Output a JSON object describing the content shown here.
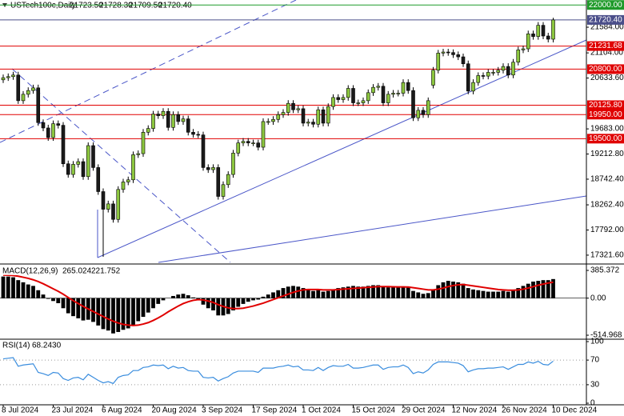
{
  "chart_data": [
    {
      "type": "candlestick",
      "title": "USTech100c,Daily",
      "header": [
        {
          "value": 21723.5,
          "label": "21723.50"
        },
        {
          "value": 21728.3,
          "label": "21728.30"
        },
        {
          "value": 21709.5,
          "label": "21709.50"
        },
        {
          "value": 21720.4,
          "label": "21720.40"
        }
      ],
      "categories": [
        "8 Jul 2024",
        null,
        null,
        null,
        null,
        null,
        null,
        null,
        null,
        null,
        "23 Jul 2024",
        null,
        null,
        null,
        null,
        null,
        null,
        null,
        null,
        null,
        "6 Aug 2024",
        null,
        null,
        null,
        null,
        null,
        null,
        null,
        null,
        null,
        "20 Aug 2024",
        null,
        null,
        null,
        null,
        null,
        null,
        null,
        null,
        null,
        "3 Sep 2024",
        null,
        null,
        null,
        null,
        null,
        null,
        null,
        null,
        null,
        "17 Sep 2024",
        null,
        null,
        null,
        null,
        null,
        null,
        null,
        null,
        null,
        "1 Oct 2024",
        null,
        null,
        null,
        null,
        null,
        null,
        null,
        null,
        null,
        "15 Oct 2024",
        null,
        null,
        null,
        null,
        null,
        null,
        null,
        null,
        null,
        "29 Oct 2024",
        null,
        null,
        null,
        null,
        null,
        null,
        null,
        null,
        null,
        "12 Nov 2024",
        null,
        null,
        null,
        null,
        null,
        null,
        null,
        null,
        null,
        "26 Nov 2024",
        null,
        null,
        null,
        null,
        null,
        null,
        null,
        null,
        null,
        "10 Dec 2024"
      ],
      "open": [
        20600,
        20640,
        20660,
        20690,
        20210,
        20330,
        20400,
        20450,
        19800,
        19700,
        19520,
        19780,
        19750,
        19030,
        18830,
        19020,
        19070,
        18790,
        19370,
        18960,
        18510,
        18180,
        18280,
        17990,
        18550,
        18690,
        18730,
        19200,
        19220,
        19620,
        19690,
        19960,
        19930,
        20010,
        19710,
        19950,
        19820,
        19870,
        19620,
        19580,
        19570,
        18960,
        18920,
        18960,
        18420,
        18640,
        18830,
        19230,
        19420,
        19450,
        19420,
        19420,
        19340,
        19820,
        19820,
        19860,
        19950,
        19990,
        20160,
        20040,
        20060,
        19790,
        19810,
        19770,
        20040,
        19790,
        20100,
        20270,
        20230,
        20270,
        20440,
        20170,
        20170,
        20210,
        20360,
        20460,
        20480,
        20170,
        20330,
        20350,
        20350,
        20550,
        20400,
        19890,
        20030,
        19950,
        20500,
        20780,
        21100,
        21120,
        21110,
        21070,
        21030,
        20900,
        20390,
        20550,
        20680,
        20670,
        20740,
        20740,
        20780,
        20850,
        20690,
        20930,
        21160,
        21180,
        21460,
        21410,
        21620,
        21420,
        21360
      ],
      "high": [
        20700,
        20720,
        20750,
        20750,
        20390,
        20460,
        20510,
        20510,
        19860,
        19760,
        19840,
        19840,
        19810,
        19090,
        19080,
        19130,
        19130,
        19430,
        19430,
        19020,
        18570,
        18340,
        18340,
        18610,
        18750,
        18790,
        19260,
        19280,
        19680,
        19750,
        20020,
        20020,
        20070,
        20070,
        20010,
        20010,
        19930,
        19930,
        19680,
        19640,
        19630,
        19020,
        19020,
        19020,
        18700,
        18890,
        19290,
        19480,
        19510,
        19510,
        19480,
        19480,
        19880,
        19880,
        19920,
        20010,
        20050,
        20220,
        20220,
        20120,
        20120,
        19870,
        19870,
        20100,
        20100,
        20160,
        20330,
        20330,
        20330,
        20500,
        20500,
        20230,
        20270,
        20420,
        20520,
        20540,
        20540,
        20390,
        20410,
        20410,
        20610,
        20610,
        20460,
        20090,
        20090,
        20270,
        20840,
        21160,
        21180,
        21180,
        21170,
        21130,
        21090,
        20960,
        20610,
        20740,
        20740,
        20800,
        20800,
        20840,
        20910,
        20910,
        20990,
        21220,
        21240,
        21520,
        21520,
        21680,
        21680,
        21480,
        21760
      ],
      "low": [
        20540,
        20580,
        20600,
        20150,
        20150,
        20270,
        20340,
        19740,
        19640,
        19460,
        19460,
        19690,
        18970,
        18770,
        18770,
        18960,
        18730,
        18730,
        18900,
        18450,
        17290,
        18120,
        17930,
        17930,
        18490,
        18630,
        18670,
        19140,
        19160,
        19560,
        19630,
        19870,
        19870,
        19650,
        19650,
        19760,
        19760,
        19560,
        19520,
        19510,
        18900,
        18860,
        18860,
        18360,
        18360,
        18580,
        18770,
        19170,
        19360,
        19360,
        19360,
        19280,
        19280,
        19760,
        19760,
        19800,
        19890,
        19930,
        19980,
        19980,
        19730,
        19730,
        19710,
        19710,
        19730,
        19730,
        20040,
        20170,
        20170,
        20210,
        20110,
        20110,
        20110,
        20150,
        20300,
        20400,
        20110,
        20110,
        20270,
        20290,
        20290,
        20340,
        19830,
        19830,
        19890,
        19890,
        20440,
        20720,
        21040,
        21050,
        21010,
        20970,
        20840,
        20330,
        20330,
        20490,
        20610,
        20610,
        20680,
        20680,
        20720,
        20630,
        20630,
        20870,
        21100,
        21120,
        21350,
        21350,
        21360,
        21300,
        21300
      ],
      "close": [
        20640,
        20660,
        20690,
        20210,
        20330,
        20400,
        20450,
        19800,
        19700,
        19520,
        19780,
        19750,
        19030,
        18830,
        19020,
        19070,
        18790,
        19370,
        18960,
        18510,
        18180,
        18280,
        17990,
        18550,
        18690,
        18730,
        19200,
        19220,
        19620,
        19690,
        19960,
        19930,
        20010,
        19710,
        19950,
        19820,
        19870,
        19620,
        19580,
        19570,
        18960,
        18920,
        18960,
        18420,
        18640,
        18830,
        19230,
        19420,
        19450,
        19420,
        19420,
        19340,
        19820,
        19820,
        19860,
        19950,
        19990,
        20160,
        20040,
        20060,
        19790,
        19810,
        19770,
        20040,
        19790,
        20100,
        20270,
        20230,
        20270,
        20440,
        20170,
        20170,
        20210,
        20360,
        20460,
        20480,
        20170,
        20330,
        20350,
        20350,
        20550,
        20400,
        19890,
        20030,
        19950,
        20210,
        20780,
        21100,
        21120,
        21110,
        21070,
        21030,
        20900,
        20390,
        20550,
        20680,
        20670,
        20740,
        20740,
        20780,
        20850,
        20690,
        20930,
        21160,
        21180,
        21460,
        21410,
        21620,
        21420,
        21360,
        21720.4
      ],
      "up_color": "#8cc63f",
      "down_color": "#1a1a1a",
      "ylim": [
        17186,
        22093
      ],
      "yticks": [
        {
          "value": 17321.6,
          "label": "17321.60"
        },
        {
          "value": 17792,
          "label": "17792.00"
        },
        {
          "value": 18262.4,
          "label": "18262.40"
        },
        {
          "value": 18742.4,
          "label": "18742.40"
        },
        {
          "value": 19212.8,
          "label": "19212.80"
        },
        {
          "value": 19683,
          "label": "19683.00"
        },
        {
          "value": 20633.6,
          "label": "20633.60"
        },
        {
          "value": 21104,
          "label": "21104.00"
        },
        {
          "value": 21584,
          "label": "21584.00"
        }
      ],
      "levels": [
        {
          "value": 22000,
          "label": "22000.00",
          "color": "#1f9a2a"
        },
        {
          "value": 21720.4,
          "label": "21720.40",
          "color": "#4b4f8a"
        },
        {
          "value": 21231.68,
          "label": "21231.68",
          "color": "#e00000"
        },
        {
          "value": 20800,
          "label": "20800.00",
          "color": "#e00000"
        },
        {
          "value": 20125.8,
          "label": "20125.80",
          "color": "#e00000"
        },
        {
          "value": 19950,
          "label": "19950.00",
          "color": "#e00000"
        },
        {
          "value": 19500,
          "label": "19500.00",
          "color": "#e00000"
        }
      ]
    },
    {
      "type": "macd",
      "title": "MACD(12,26,9)",
      "readout": [
        {
          "value": 265.024,
          "label": "265.024"
        },
        {
          "value": 221.752,
          "label": "221.752"
        }
      ],
      "histogram": [
        300,
        300,
        290,
        250,
        220,
        190,
        170,
        110,
        50,
        -10,
        -40,
        -70,
        -140,
        -210,
        -250,
        -280,
        -310,
        -300,
        -330,
        -380,
        -430,
        -450,
        -490,
        -470,
        -440,
        -420,
        -370,
        -320,
        -260,
        -200,
        -140,
        -80,
        -30,
        0,
        30,
        50,
        60,
        40,
        10,
        -20,
        -90,
        -140,
        -170,
        -240,
        -240,
        -220,
        -170,
        -120,
        -80,
        -50,
        -30,
        -20,
        20,
        50,
        80,
        110,
        140,
        160,
        170,
        160,
        140,
        120,
        100,
        110,
        90,
        100,
        120,
        140,
        150,
        160,
        170,
        160,
        160,
        170,
        180,
        180,
        160,
        150,
        150,
        150,
        160,
        150,
        100,
        80,
        60,
        70,
        120,
        180,
        220,
        240,
        230,
        220,
        200,
        140,
        120,
        110,
        100,
        90,
        90,
        90,
        100,
        90,
        110,
        140,
        170,
        200,
        230,
        240,
        250,
        250,
        265.024
      ],
      "signal": [
        320,
        318,
        315,
        305,
        290,
        275,
        255,
        230,
        200,
        165,
        130,
        95,
        55,
        10,
        -35,
        -75,
        -115,
        -150,
        -185,
        -220,
        -255,
        -290,
        -320,
        -345,
        -365,
        -375,
        -380,
        -375,
        -360,
        -340,
        -310,
        -275,
        -235,
        -190,
        -150,
        -110,
        -75,
        -50,
        -30,
        -20,
        -25,
        -40,
        -60,
        -90,
        -115,
        -135,
        -145,
        -145,
        -140,
        -125,
        -110,
        -90,
        -70,
        -45,
        -20,
        5,
        30,
        55,
        80,
        100,
        115,
        120,
        120,
        120,
        115,
        115,
        115,
        120,
        125,
        130,
        135,
        140,
        145,
        150,
        155,
        160,
        160,
        160,
        158,
        156,
        156,
        155,
        145,
        135,
        125,
        115,
        115,
        125,
        140,
        160,
        175,
        185,
        190,
        180,
        170,
        160,
        150,
        140,
        130,
        120,
        115,
        110,
        110,
        115,
        125,
        140,
        160,
        180,
        195,
        210,
        221.752
      ],
      "histogram_color": "#000000",
      "signal_color": "#e00000",
      "ylim": [
        -537,
        452
      ],
      "yticks": [
        {
          "value": 385.372,
          "label": "385.372"
        },
        {
          "value": 0,
          "label": "0.00"
        },
        {
          "value": -514.968,
          "label": "-514.968"
        }
      ]
    },
    {
      "type": "line",
      "title": "RSI(14)",
      "readout": {
        "value": 68.243,
        "label": "68.2430"
      },
      "values": [
        72,
        73,
        74,
        60,
        62,
        63,
        64,
        50,
        48,
        45,
        50,
        49,
        40,
        37,
        41,
        42,
        38,
        47,
        42,
        37,
        33,
        35,
        32,
        42,
        45,
        46,
        53,
        53,
        58,
        59,
        62,
        61,
        62,
        56,
        60,
        57,
        58,
        53,
        52,
        52,
        42,
        41,
        42,
        36,
        40,
        43,
        49,
        52,
        52,
        52,
        52,
        50,
        57,
        57,
        57,
        59,
        60,
        62,
        59,
        60,
        54,
        54,
        53,
        58,
        53,
        58,
        61,
        60,
        60,
        63,
        57,
        57,
        58,
        60,
        62,
        62,
        55,
        58,
        59,
        59,
        62,
        58,
        48,
        51,
        49,
        54,
        63,
        67,
        67,
        67,
        66,
        65,
        61,
        51,
        54,
        56,
        56,
        57,
        57,
        58,
        59,
        55,
        59,
        63,
        63,
        67,
        65,
        68,
        63,
        62,
        68.243
      ],
      "color": "#3a8dde",
      "ylim": [
        0,
        100
      ],
      "yticks": [
        100,
        70,
        30,
        0
      ],
      "levels": [
        70,
        30
      ]
    }
  ]
}
